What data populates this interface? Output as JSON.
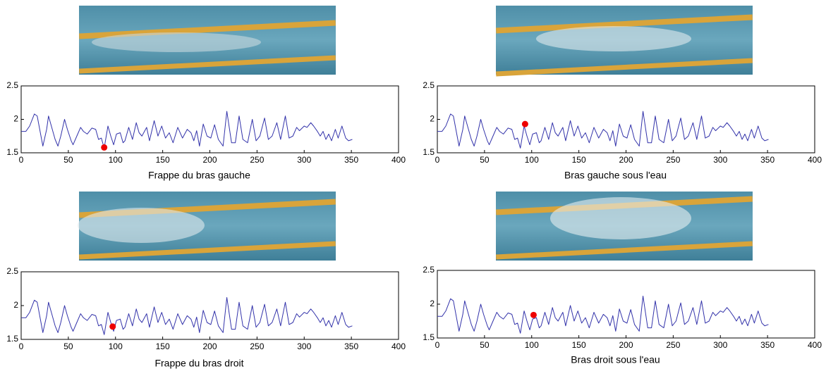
{
  "chart_data": [
    {
      "type": "line",
      "xlabel": "Frappe du bras gauche",
      "xlim": [
        0,
        400
      ],
      "ylim": [
        1.5,
        2.5
      ],
      "xticks": [
        0,
        50,
        100,
        150,
        200,
        250,
        300,
        350,
        400
      ],
      "yticks": [
        1.5,
        2,
        2.5
      ],
      "color": "#3333aa",
      "x": [
        0,
        5,
        9,
        14,
        17,
        21,
        23,
        27,
        29,
        32,
        36,
        39,
        42,
        46,
        49,
        53,
        55,
        59,
        63,
        66,
        70,
        75,
        79,
        82,
        85,
        88,
        92,
        95,
        98,
        101,
        105,
        108,
        110,
        114,
        118,
        122,
        125,
        128,
        133,
        136,
        141,
        145,
        149,
        153,
        157,
        161,
        166,
        171,
        176,
        180,
        183,
        186,
        189,
        193,
        197,
        201,
        205,
        209,
        214,
        218,
        223,
        227,
        231,
        235,
        240,
        245,
        249,
        253,
        258,
        262,
        266,
        271,
        275,
        280,
        284,
        288,
        292,
        295,
        300,
        303,
        307,
        310,
        314,
        317,
        320,
        323,
        326,
        329,
        333,
        336,
        340,
        344,
        347,
        351
      ],
      "values": [
        1.82,
        1.82,
        1.9,
        2.08,
        2.05,
        1.75,
        1.6,
        1.85,
        2.05,
        1.9,
        1.7,
        1.6,
        1.75,
        2.0,
        1.85,
        1.68,
        1.62,
        1.75,
        1.88,
        1.82,
        1.78,
        1.87,
        1.85,
        1.7,
        1.72,
        1.57,
        1.9,
        1.75,
        1.62,
        1.78,
        1.8,
        1.65,
        1.68,
        1.88,
        1.7,
        1.95,
        1.8,
        1.75,
        1.88,
        1.68,
        1.98,
        1.75,
        1.9,
        1.72,
        1.8,
        1.65,
        1.88,
        1.72,
        1.85,
        1.8,
        1.68,
        1.83,
        1.6,
        1.93,
        1.75,
        1.72,
        1.92,
        1.7,
        1.6,
        2.12,
        1.65,
        1.65,
        2.05,
        1.7,
        1.65,
        2.0,
        1.68,
        1.75,
        2.02,
        1.7,
        1.75,
        1.95,
        1.7,
        2.05,
        1.72,
        1.75,
        1.88,
        1.83,
        1.9,
        1.88,
        1.95,
        1.9,
        1.82,
        1.75,
        1.82,
        1.7,
        1.78,
        1.68,
        1.85,
        1.72,
        1.9,
        1.72,
        1.68,
        1.7
      ],
      "marker": {
        "x": 88,
        "y": 1.58,
        "color": "#ee0000"
      }
    },
    {
      "type": "line",
      "xlabel": "Bras gauche sous l'eau",
      "xlim": [
        0,
        400
      ],
      "ylim": [
        1.5,
        2.5
      ],
      "xticks": [
        0,
        50,
        100,
        150,
        200,
        250,
        300,
        350,
        400
      ],
      "yticks": [
        1.5,
        2,
        2.5
      ],
      "color": "#3333aa",
      "x": [
        0,
        5,
        9,
        14,
        17,
        21,
        23,
        27,
        29,
        32,
        36,
        39,
        42,
        46,
        49,
        53,
        55,
        59,
        63,
        66,
        70,
        75,
        79,
        82,
        85,
        88,
        92,
        95,
        98,
        101,
        105,
        108,
        110,
        114,
        118,
        122,
        125,
        128,
        133,
        136,
        141,
        145,
        149,
        153,
        157,
        161,
        166,
        171,
        176,
        180,
        183,
        186,
        189,
        193,
        197,
        201,
        205,
        209,
        214,
        218,
        223,
        227,
        231,
        235,
        240,
        245,
        249,
        253,
        258,
        262,
        266,
        271,
        275,
        280,
        284,
        288,
        292,
        295,
        300,
        303,
        307,
        310,
        314,
        317,
        320,
        323,
        326,
        329,
        333,
        336,
        340,
        344,
        347,
        351
      ],
      "values": [
        1.82,
        1.82,
        1.9,
        2.08,
        2.05,
        1.75,
        1.6,
        1.85,
        2.05,
        1.9,
        1.7,
        1.6,
        1.75,
        2.0,
        1.85,
        1.68,
        1.62,
        1.75,
        1.88,
        1.82,
        1.78,
        1.87,
        1.85,
        1.7,
        1.72,
        1.57,
        1.9,
        1.75,
        1.62,
        1.78,
        1.8,
        1.65,
        1.68,
        1.88,
        1.7,
        1.95,
        1.8,
        1.75,
        1.88,
        1.68,
        1.98,
        1.75,
        1.9,
        1.72,
        1.8,
        1.65,
        1.88,
        1.72,
        1.85,
        1.8,
        1.68,
        1.83,
        1.6,
        1.93,
        1.75,
        1.72,
        1.92,
        1.7,
        1.6,
        2.12,
        1.65,
        1.65,
        2.05,
        1.7,
        1.65,
        2.0,
        1.68,
        1.75,
        2.02,
        1.7,
        1.75,
        1.95,
        1.7,
        2.05,
        1.72,
        1.75,
        1.88,
        1.83,
        1.9,
        1.88,
        1.95,
        1.9,
        1.82,
        1.75,
        1.82,
        1.7,
        1.78,
        1.68,
        1.85,
        1.72,
        1.9,
        1.72,
        1.68,
        1.7
      ],
      "marker": {
        "x": 93,
        "y": 1.93,
        "color": "#ee0000"
      }
    },
    {
      "type": "line",
      "xlabel": "Frappe du bras droit",
      "xlim": [
        0,
        400
      ],
      "ylim": [
        1.5,
        2.5
      ],
      "xticks": [
        0,
        50,
        100,
        150,
        200,
        250,
        300,
        350,
        400
      ],
      "yticks": [
        1.5,
        2,
        2.5
      ],
      "color": "#3333aa",
      "x": [
        0,
        5,
        9,
        14,
        17,
        21,
        23,
        27,
        29,
        32,
        36,
        39,
        42,
        46,
        49,
        53,
        55,
        59,
        63,
        66,
        70,
        75,
        79,
        82,
        85,
        88,
        92,
        95,
        98,
        101,
        105,
        108,
        110,
        114,
        118,
        122,
        125,
        128,
        133,
        136,
        141,
        145,
        149,
        153,
        157,
        161,
        166,
        171,
        176,
        180,
        183,
        186,
        189,
        193,
        197,
        201,
        205,
        209,
        214,
        218,
        223,
        227,
        231,
        235,
        240,
        245,
        249,
        253,
        258,
        262,
        266,
        271,
        275,
        280,
        284,
        288,
        292,
        295,
        300,
        303,
        307,
        310,
        314,
        317,
        320,
        323,
        326,
        329,
        333,
        336,
        340,
        344,
        347,
        351
      ],
      "values": [
        1.82,
        1.82,
        1.9,
        2.08,
        2.05,
        1.75,
        1.6,
        1.85,
        2.05,
        1.9,
        1.7,
        1.6,
        1.75,
        2.0,
        1.85,
        1.68,
        1.62,
        1.75,
        1.88,
        1.82,
        1.78,
        1.87,
        1.85,
        1.7,
        1.72,
        1.57,
        1.9,
        1.75,
        1.62,
        1.78,
        1.8,
        1.65,
        1.68,
        1.88,
        1.7,
        1.95,
        1.8,
        1.75,
        1.88,
        1.68,
        1.98,
        1.75,
        1.9,
        1.72,
        1.8,
        1.65,
        1.88,
        1.72,
        1.85,
        1.8,
        1.68,
        1.83,
        1.6,
        1.93,
        1.75,
        1.72,
        1.92,
        1.7,
        1.6,
        2.12,
        1.65,
        1.65,
        2.05,
        1.7,
        1.65,
        2.0,
        1.68,
        1.75,
        2.02,
        1.7,
        1.75,
        1.95,
        1.7,
        2.05,
        1.72,
        1.75,
        1.88,
        1.83,
        1.9,
        1.88,
        1.95,
        1.9,
        1.82,
        1.75,
        1.82,
        1.7,
        1.78,
        1.68,
        1.85,
        1.72,
        1.9,
        1.72,
        1.68,
        1.7
      ],
      "marker": {
        "x": 97,
        "y": 1.69,
        "color": "#ee0000"
      }
    },
    {
      "type": "line",
      "xlabel": "Bras droit sous l'eau",
      "xlim": [
        0,
        400
      ],
      "ylim": [
        1.5,
        2.5
      ],
      "xticks": [
        0,
        50,
        100,
        150,
        200,
        250,
        300,
        350,
        400
      ],
      "yticks": [
        1.5,
        2,
        2.5
      ],
      "color": "#3333aa",
      "x": [
        0,
        5,
        9,
        14,
        17,
        21,
        23,
        27,
        29,
        32,
        36,
        39,
        42,
        46,
        49,
        53,
        55,
        59,
        63,
        66,
        70,
        75,
        79,
        82,
        85,
        88,
        92,
        95,
        98,
        101,
        105,
        108,
        110,
        114,
        118,
        122,
        125,
        128,
        133,
        136,
        141,
        145,
        149,
        153,
        157,
        161,
        166,
        171,
        176,
        180,
        183,
        186,
        189,
        193,
        197,
        201,
        205,
        209,
        214,
        218,
        223,
        227,
        231,
        235,
        240,
        245,
        249,
        253,
        258,
        262,
        266,
        271,
        275,
        280,
        284,
        288,
        292,
        295,
        300,
        303,
        307,
        310,
        314,
        317,
        320,
        323,
        326,
        329,
        333,
        336,
        340,
        344,
        347,
        351
      ],
      "values": [
        1.82,
        1.82,
        1.9,
        2.08,
        2.05,
        1.75,
        1.6,
        1.85,
        2.05,
        1.9,
        1.7,
        1.6,
        1.75,
        2.0,
        1.85,
        1.68,
        1.62,
        1.75,
        1.88,
        1.82,
        1.78,
        1.87,
        1.85,
        1.7,
        1.72,
        1.57,
        1.9,
        1.75,
        1.62,
        1.78,
        1.8,
        1.65,
        1.68,
        1.88,
        1.7,
        1.95,
        1.8,
        1.75,
        1.88,
        1.68,
        1.98,
        1.75,
        1.9,
        1.72,
        1.8,
        1.65,
        1.88,
        1.72,
        1.85,
        1.8,
        1.68,
        1.83,
        1.6,
        1.93,
        1.75,
        1.72,
        1.92,
        1.7,
        1.6,
        2.12,
        1.65,
        1.65,
        2.05,
        1.7,
        1.65,
        2.0,
        1.68,
        1.75,
        2.02,
        1.7,
        1.75,
        1.95,
        1.7,
        2.05,
        1.72,
        1.75,
        1.88,
        1.83,
        1.9,
        1.88,
        1.95,
        1.9,
        1.82,
        1.75,
        1.82,
        1.7,
        1.78,
        1.68,
        1.85,
        1.72,
        1.9,
        1.72,
        1.68,
        1.7
      ],
      "marker": {
        "x": 102,
        "y": 1.84,
        "color": "#ee0000"
      }
    }
  ]
}
